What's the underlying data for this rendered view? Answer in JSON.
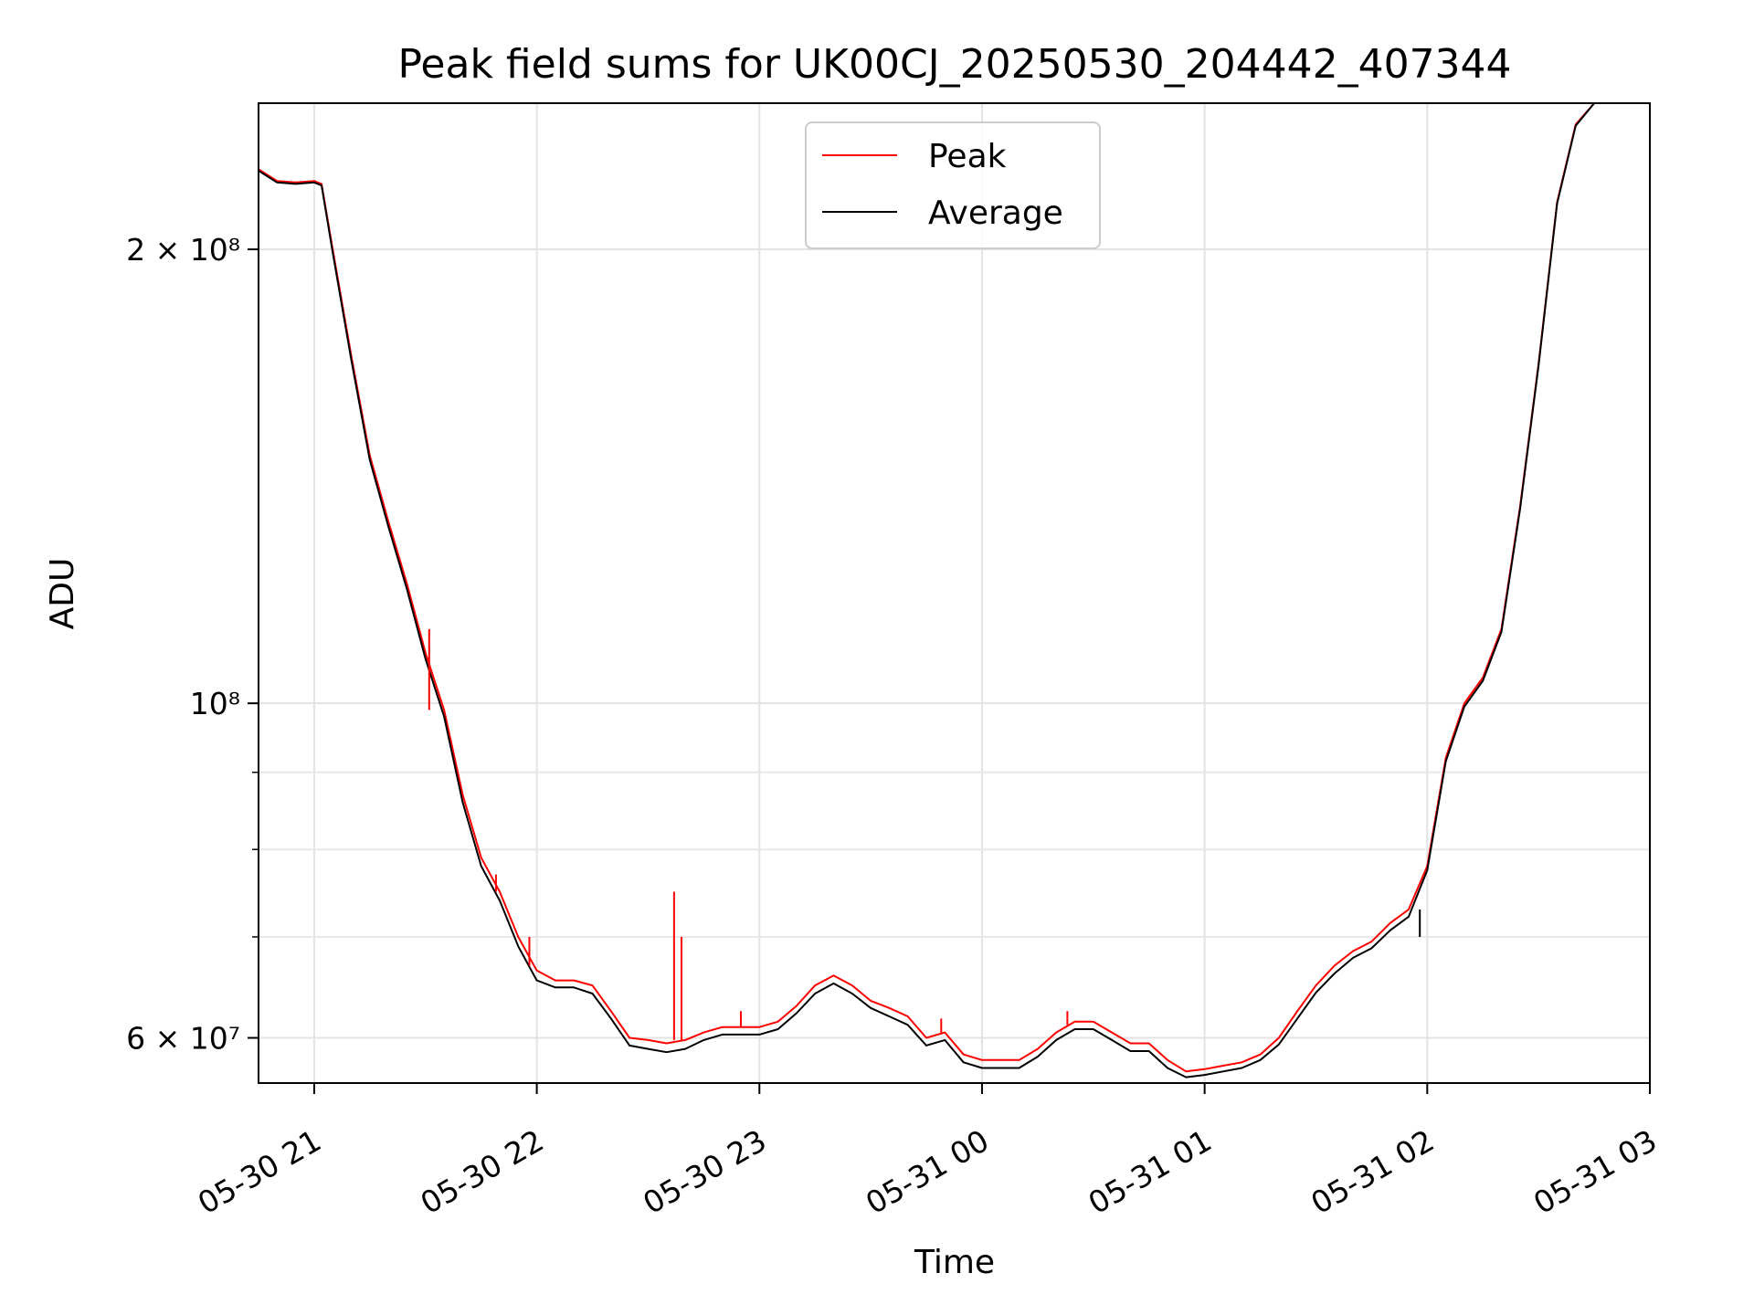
{
  "chart_data": {
    "type": "line",
    "title": "Peak field sums for UK00CJ_20250530_204442_407344",
    "xlabel": "Time",
    "ylabel": "ADU",
    "yscale": "log",
    "grid": true,
    "legend_position": "top-center",
    "xlim": [
      "2025-05-30 20:45",
      "2025-05-31 03:00"
    ],
    "ylim": [
      56000000,
      250000000
    ],
    "x_ticks": [
      {
        "value": "2025-05-30 21:00",
        "label": "05-30 21"
      },
      {
        "value": "2025-05-30 22:00",
        "label": "05-30 22"
      },
      {
        "value": "2025-05-30 23:00",
        "label": "05-30 23"
      },
      {
        "value": "2025-05-31 00:00",
        "label": "05-31 00"
      },
      {
        "value": "2025-05-31 01:00",
        "label": "05-31 01"
      },
      {
        "value": "2025-05-31 02:00",
        "label": "05-31 02"
      },
      {
        "value": "2025-05-31 03:00",
        "label": "05-31 03"
      }
    ],
    "y_ticks": [
      {
        "value": 60000000,
        "label": "6 × 10⁷"
      },
      {
        "value": 100000000,
        "label": "10⁸"
      },
      {
        "value": 200000000,
        "label": "2 × 10⁸"
      }
    ],
    "y_minor_ticks": [
      70000000,
      80000000,
      90000000
    ],
    "series": [
      {
        "name": "Peak",
        "color": "#ff0000",
        "points": [
          [
            "2025-05-30 20:45",
            226000000
          ],
          [
            "2025-05-30 20:50",
            222000000
          ],
          [
            "2025-05-30 20:55",
            221500000
          ],
          [
            "2025-05-30 21:00",
            222000000
          ],
          [
            "2025-05-30 21:02",
            221000000
          ],
          [
            "2025-05-30 21:05",
            200000000
          ],
          [
            "2025-05-30 21:10",
            170000000
          ],
          [
            "2025-05-30 21:15",
            146000000
          ],
          [
            "2025-05-30 21:20",
            132000000
          ],
          [
            "2025-05-30 21:25",
            120000000
          ],
          [
            "2025-05-30 21:30",
            108000000
          ],
          [
            "2025-05-30 21:35",
            99000000
          ],
          [
            "2025-05-30 21:40",
            87000000
          ],
          [
            "2025-05-30 21:45",
            79000000
          ],
          [
            "2025-05-30 21:50",
            75000000
          ],
          [
            "2025-05-30 21:55",
            70000000
          ],
          [
            "2025-05-30 22:00",
            66500000
          ],
          [
            "2025-05-30 22:05",
            65500000
          ],
          [
            "2025-05-30 22:10",
            65500000
          ],
          [
            "2025-05-30 22:15",
            65000000
          ],
          [
            "2025-05-30 22:20",
            62500000
          ],
          [
            "2025-05-30 22:25",
            60000000
          ],
          [
            "2025-05-30 22:30",
            59800000
          ],
          [
            "2025-05-30 22:35",
            59500000
          ],
          [
            "2025-05-30 22:40",
            59800000
          ],
          [
            "2025-05-30 22:45",
            60500000
          ],
          [
            "2025-05-30 22:50",
            61000000
          ],
          [
            "2025-05-30 22:55",
            61000000
          ],
          [
            "2025-05-30 23:00",
            61000000
          ],
          [
            "2025-05-30 23:05",
            61500000
          ],
          [
            "2025-05-30 23:10",
            63000000
          ],
          [
            "2025-05-30 23:15",
            65000000
          ],
          [
            "2025-05-30 23:20",
            66000000
          ],
          [
            "2025-05-30 23:25",
            65000000
          ],
          [
            "2025-05-30 23:30",
            63500000
          ],
          [
            "2025-05-30 23:35",
            62800000
          ],
          [
            "2025-05-30 23:40",
            62000000
          ],
          [
            "2025-05-30 23:45",
            60000000
          ],
          [
            "2025-05-30 23:50",
            60500000
          ],
          [
            "2025-05-30 23:55",
            58500000
          ],
          [
            "2025-05-31 00:00",
            58000000
          ],
          [
            "2025-05-31 00:05",
            58000000
          ],
          [
            "2025-05-31 00:10",
            58000000
          ],
          [
            "2025-05-31 00:15",
            59000000
          ],
          [
            "2025-05-31 00:20",
            60500000
          ],
          [
            "2025-05-31 00:25",
            61500000
          ],
          [
            "2025-05-31 00:30",
            61500000
          ],
          [
            "2025-05-31 00:35",
            60500000
          ],
          [
            "2025-05-31 00:40",
            59500000
          ],
          [
            "2025-05-31 00:45",
            59500000
          ],
          [
            "2025-05-31 00:50",
            58000000
          ],
          [
            "2025-05-31 00:55",
            57000000
          ],
          [
            "2025-05-31 01:00",
            57200000
          ],
          [
            "2025-05-31 01:05",
            57500000
          ],
          [
            "2025-05-31 01:10",
            57800000
          ],
          [
            "2025-05-31 01:15",
            58500000
          ],
          [
            "2025-05-31 01:20",
            60000000
          ],
          [
            "2025-05-31 01:25",
            62500000
          ],
          [
            "2025-05-31 01:30",
            65000000
          ],
          [
            "2025-05-31 01:35",
            67000000
          ],
          [
            "2025-05-31 01:40",
            68500000
          ],
          [
            "2025-05-31 01:45",
            69500000
          ],
          [
            "2025-05-31 01:50",
            71500000
          ],
          [
            "2025-05-31 01:55",
            73000000
          ],
          [
            "2025-05-31 02:00",
            78000000
          ],
          [
            "2025-05-31 02:05",
            92000000
          ],
          [
            "2025-05-31 02:10",
            100000000
          ],
          [
            "2025-05-31 02:15",
            104000000
          ],
          [
            "2025-05-31 02:20",
            112000000
          ],
          [
            "2025-05-31 02:25",
            135000000
          ],
          [
            "2025-05-31 02:30",
            168000000
          ],
          [
            "2025-05-31 02:35",
            215000000
          ],
          [
            "2025-05-31 02:40",
            242000000
          ],
          [
            "2025-05-31 02:45",
            250000000
          ],
          [
            "2025-05-31 03:00",
            250000000
          ]
        ]
      },
      {
        "name": "Average",
        "color": "#000000",
        "points": [
          [
            "2025-05-30 20:45",
            225500000
          ],
          [
            "2025-05-30 20:50",
            221500000
          ],
          [
            "2025-05-30 20:55",
            221000000
          ],
          [
            "2025-05-30 21:00",
            221500000
          ],
          [
            "2025-05-30 21:02",
            220500000
          ],
          [
            "2025-05-30 21:05",
            199000000
          ],
          [
            "2025-05-30 21:10",
            169000000
          ],
          [
            "2025-05-30 21:15",
            145000000
          ],
          [
            "2025-05-30 21:20",
            131000000
          ],
          [
            "2025-05-30 21:25",
            119000000
          ],
          [
            "2025-05-30 21:30",
            107000000
          ],
          [
            "2025-05-30 21:35",
            98000000
          ],
          [
            "2025-05-30 21:40",
            86000000
          ],
          [
            "2025-05-30 21:45",
            78000000
          ],
          [
            "2025-05-30 21:50",
            74000000
          ],
          [
            "2025-05-30 21:55",
            69000000
          ],
          [
            "2025-05-30 22:00",
            65500000
          ],
          [
            "2025-05-30 22:05",
            64800000
          ],
          [
            "2025-05-30 22:10",
            64800000
          ],
          [
            "2025-05-30 22:15",
            64200000
          ],
          [
            "2025-05-30 22:20",
            61800000
          ],
          [
            "2025-05-30 22:25",
            59300000
          ],
          [
            "2025-05-30 22:30",
            59000000
          ],
          [
            "2025-05-30 22:35",
            58700000
          ],
          [
            "2025-05-30 22:40",
            59000000
          ],
          [
            "2025-05-30 22:45",
            59800000
          ],
          [
            "2025-05-30 22:50",
            60300000
          ],
          [
            "2025-05-30 22:55",
            60300000
          ],
          [
            "2025-05-30 23:00",
            60300000
          ],
          [
            "2025-05-30 23:05",
            60800000
          ],
          [
            "2025-05-30 23:10",
            62300000
          ],
          [
            "2025-05-30 23:15",
            64200000
          ],
          [
            "2025-05-30 23:20",
            65200000
          ],
          [
            "2025-05-30 23:25",
            64200000
          ],
          [
            "2025-05-30 23:30",
            62800000
          ],
          [
            "2025-05-30 23:35",
            62000000
          ],
          [
            "2025-05-30 23:40",
            61200000
          ],
          [
            "2025-05-30 23:45",
            59300000
          ],
          [
            "2025-05-30 23:50",
            59800000
          ],
          [
            "2025-05-30 23:55",
            57800000
          ],
          [
            "2025-05-31 00:00",
            57300000
          ],
          [
            "2025-05-31 00:05",
            57300000
          ],
          [
            "2025-05-31 00:10",
            57300000
          ],
          [
            "2025-05-31 00:15",
            58300000
          ],
          [
            "2025-05-31 00:20",
            59800000
          ],
          [
            "2025-05-31 00:25",
            60800000
          ],
          [
            "2025-05-31 00:30",
            60800000
          ],
          [
            "2025-05-31 00:35",
            59800000
          ],
          [
            "2025-05-31 00:40",
            58800000
          ],
          [
            "2025-05-31 00:45",
            58800000
          ],
          [
            "2025-05-31 00:50",
            57300000
          ],
          [
            "2025-05-31 00:55",
            56500000
          ],
          [
            "2025-05-31 01:00",
            56700000
          ],
          [
            "2025-05-31 01:05",
            57000000
          ],
          [
            "2025-05-31 01:10",
            57300000
          ],
          [
            "2025-05-31 01:15",
            58000000
          ],
          [
            "2025-05-31 01:20",
            59400000
          ],
          [
            "2025-05-31 01:25",
            61800000
          ],
          [
            "2025-05-31 01:30",
            64300000
          ],
          [
            "2025-05-31 01:35",
            66200000
          ],
          [
            "2025-05-31 01:40",
            67800000
          ],
          [
            "2025-05-31 01:45",
            68800000
          ],
          [
            "2025-05-31 01:50",
            70700000
          ],
          [
            "2025-05-31 01:55",
            72200000
          ],
          [
            "2025-05-31 02:00",
            77500000
          ],
          [
            "2025-05-31 02:05",
            91500000
          ],
          [
            "2025-05-31 02:10",
            99500000
          ],
          [
            "2025-05-31 02:15",
            103500000
          ],
          [
            "2025-05-31 02:20",
            111500000
          ],
          [
            "2025-05-31 02:25",
            134500000
          ],
          [
            "2025-05-31 02:30",
            167500000
          ],
          [
            "2025-05-31 02:35",
            214500000
          ],
          [
            "2025-05-31 02:40",
            241500000
          ],
          [
            "2025-05-31 02:45",
            250000000
          ],
          [
            "2025-05-31 03:00",
            250000000
          ]
        ]
      }
    ],
    "spikes": [
      {
        "series": "Peak",
        "x": "2025-05-30 21:31",
        "base": 99000000,
        "top": 112000000
      },
      {
        "series": "Peak",
        "x": "2025-05-30 21:49",
        "base": 75000000,
        "top": 77000000
      },
      {
        "series": "Peak",
        "x": "2025-05-30 21:58",
        "base": 67000000,
        "top": 70000000
      },
      {
        "series": "Peak",
        "x": "2025-05-30 22:37",
        "base": 59800000,
        "top": 75000000
      },
      {
        "series": "Peak",
        "x": "2025-05-30 22:39",
        "base": 59800000,
        "top": 70000000
      },
      {
        "series": "Peak",
        "x": "2025-05-30 22:55",
        "base": 61000000,
        "top": 62500000
      },
      {
        "series": "Peak",
        "x": "2025-05-30 23:49",
        "base": 60300000,
        "top": 61800000
      },
      {
        "series": "Peak",
        "x": "2025-05-31 00:23",
        "base": 61200000,
        "top": 62500000
      },
      {
        "series": "Average",
        "x": "2025-05-31 01:58",
        "base": 73000000,
        "top": 70000000
      }
    ]
  }
}
